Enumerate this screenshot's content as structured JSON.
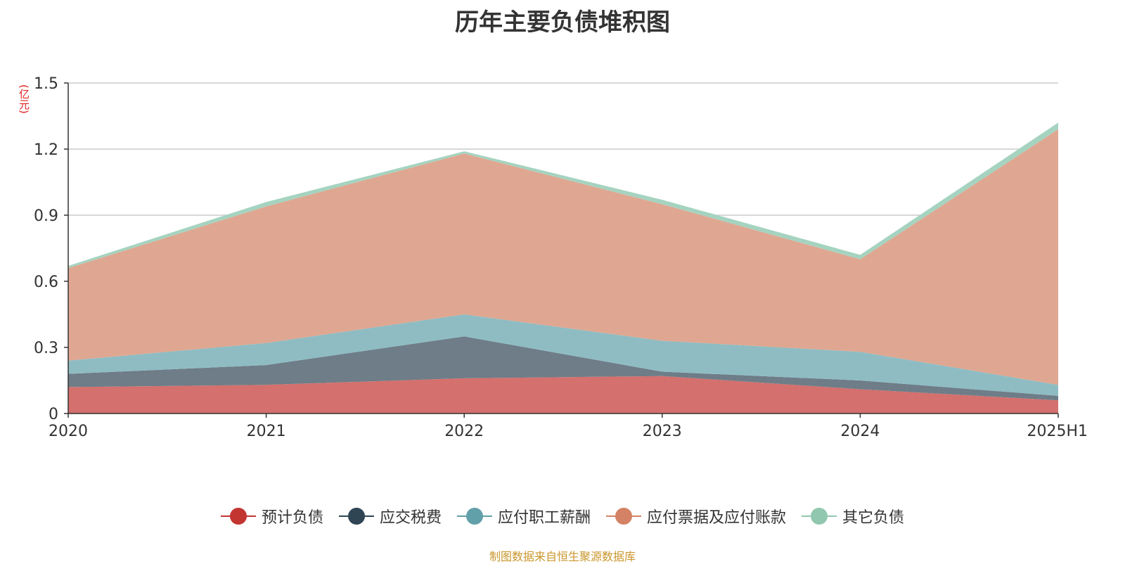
{
  "chart_data": {
    "type": "area",
    "stacked": true,
    "title": "历年主要负债堆积图",
    "unit_label": "(亿元)",
    "x": [
      "2020",
      "2021",
      "2022",
      "2023",
      "2024",
      "2025H1"
    ],
    "ylim": [
      0,
      1.5
    ],
    "yticks": [
      "0",
      "0.3",
      "0.6",
      "0.9",
      "1.2",
      "1.5"
    ],
    "grid": true,
    "legend_position": "bottom",
    "series": [
      {
        "name": "预计负债",
        "color": "#d4706d",
        "line_color": "#c23531",
        "values": [
          0.12,
          0.13,
          0.16,
          0.17,
          0.11,
          0.06
        ]
      },
      {
        "name": "应交税费",
        "color": "#6e7d88",
        "line_color": "#2f4554",
        "values": [
          0.06,
          0.09,
          0.19,
          0.02,
          0.04,
          0.02
        ]
      },
      {
        "name": "应付职工薪酬",
        "color": "#8fbcc3",
        "line_color": "#61a0a8",
        "values": [
          0.06,
          0.1,
          0.1,
          0.14,
          0.13,
          0.05
        ]
      },
      {
        "name": "应付票据及应付账款",
        "color": "#dfa791",
        "line_color": "#d48265",
        "values": [
          0.42,
          0.62,
          0.73,
          0.62,
          0.42,
          1.16
        ]
      },
      {
        "name": "其它负债",
        "color": "#a5d3c0",
        "line_color": "#91c7ae",
        "values": [
          0.01,
          0.02,
          0.01,
          0.02,
          0.02,
          0.03
        ]
      }
    ],
    "source": "制图数据来自恒生聚源数据库"
  }
}
